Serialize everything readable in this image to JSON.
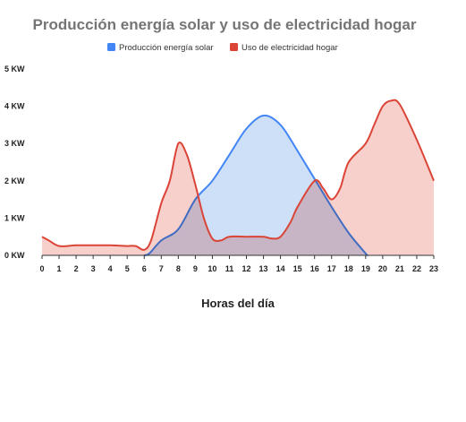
{
  "chart_data": {
    "type": "area",
    "title": "Producción energía solar y uso de electricidad hogar",
    "xlabel": "Horas del día",
    "ylabel": "",
    "x": [
      0,
      1,
      2,
      3,
      4,
      5,
      6,
      7,
      8,
      9,
      10,
      11,
      12,
      13,
      14,
      15,
      16,
      17,
      18,
      19,
      20,
      21,
      22,
      23
    ],
    "x_tick_labels": [
      "0",
      "1",
      "2",
      "3",
      "4",
      "5",
      "6",
      "7",
      "8",
      "9",
      "10",
      "11",
      "12",
      "13",
      "14",
      "15",
      "16",
      "17",
      "18",
      "19",
      "20",
      "21",
      "22",
      "23"
    ],
    "y_tick_labels": [
      "0 KW",
      "1 KW",
      "2 KW",
      "3 KW",
      "4 KW",
      "5 KW"
    ],
    "ylim": [
      0,
      5
    ],
    "xlim": [
      0,
      23
    ],
    "grid": false,
    "legend_position": "top",
    "series": [
      {
        "name": "Producción energía solar",
        "color": "#4285f4",
        "fill": "#c6d9f7",
        "points": [
          [
            6,
            0
          ],
          [
            6.3,
            0.05
          ],
          [
            7,
            0.4
          ],
          [
            8,
            0.7
          ],
          [
            9,
            1.5
          ],
          [
            10,
            2.0
          ],
          [
            11,
            2.7
          ],
          [
            12,
            3.4
          ],
          [
            13,
            3.75
          ],
          [
            14,
            3.5
          ],
          [
            15,
            2.8
          ],
          [
            16,
            2.05
          ],
          [
            17,
            1.3
          ],
          [
            18,
            0.6
          ],
          [
            19,
            0.05
          ],
          [
            19.1,
            0
          ]
        ]
      },
      {
        "name": "Uso de electricidad hogar",
        "color": "#db4437",
        "fill": "#f6c7c2",
        "points": [
          [
            0,
            0.5
          ],
          [
            0.4,
            0.4
          ],
          [
            1,
            0.25
          ],
          [
            2,
            0.27
          ],
          [
            3,
            0.27
          ],
          [
            4,
            0.27
          ],
          [
            5,
            0.25
          ],
          [
            5.5,
            0.25
          ],
          [
            6,
            0.15
          ],
          [
            6.4,
            0.4
          ],
          [
            7,
            1.4
          ],
          [
            7.5,
            2.0
          ],
          [
            8,
            3.0
          ],
          [
            8.5,
            2.7
          ],
          [
            9,
            1.9
          ],
          [
            9.5,
            1.0
          ],
          [
            10,
            0.45
          ],
          [
            10.5,
            0.4
          ],
          [
            11,
            0.5
          ],
          [
            12,
            0.5
          ],
          [
            13,
            0.5
          ],
          [
            13.5,
            0.45
          ],
          [
            14,
            0.5
          ],
          [
            14.6,
            0.9
          ],
          [
            15,
            1.3
          ],
          [
            16,
            2.0
          ],
          [
            16.5,
            1.8
          ],
          [
            17,
            1.5
          ],
          [
            17.5,
            1.8
          ],
          [
            18,
            2.5
          ],
          [
            19,
            3.0
          ],
          [
            19.5,
            3.5
          ],
          [
            20,
            4.0
          ],
          [
            20.5,
            4.15
          ],
          [
            21,
            4.05
          ],
          [
            22,
            3.1
          ],
          [
            23,
            2.0
          ]
        ]
      }
    ]
  }
}
